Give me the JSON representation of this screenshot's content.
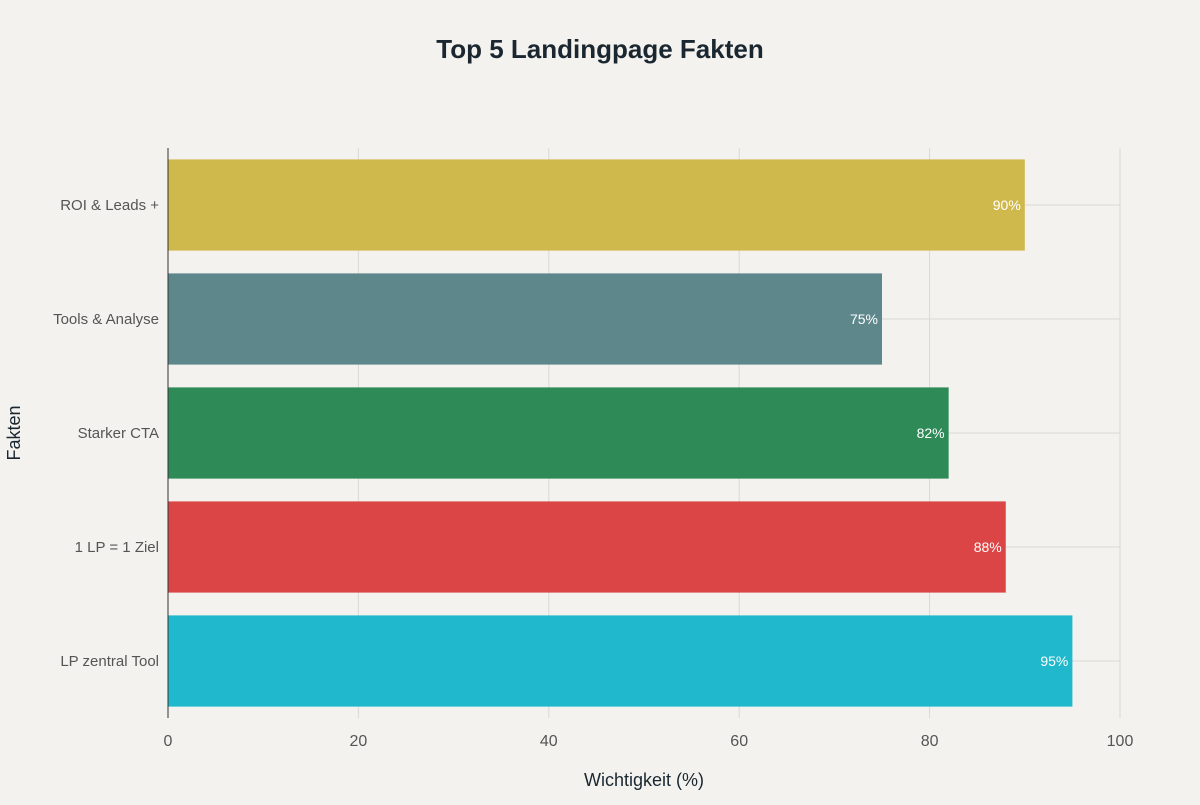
{
  "chart_data": {
    "type": "bar",
    "orientation": "horizontal",
    "title": "Top 5 Landingpage Fakten",
    "xlabel": "Wichtigkeit (%)",
    "ylabel": "Fakten",
    "xlim": [
      0,
      100
    ],
    "xticks": [
      0,
      20,
      40,
      60,
      80,
      100
    ],
    "grid": true,
    "categories": [
      "ROI & Leads +",
      "Tools & Analyse",
      "Starker CTA",
      "1 LP = 1 Ziel",
      "LP zentral Tool"
    ],
    "values": [
      90,
      75,
      82,
      88,
      95
    ],
    "data_labels": [
      "90%",
      "75%",
      "82%",
      "88%",
      "95%"
    ],
    "colors": [
      "#D0B94C",
      "#5E878C",
      "#2E8B57",
      "#DB4545",
      "#1FB8CD"
    ]
  }
}
